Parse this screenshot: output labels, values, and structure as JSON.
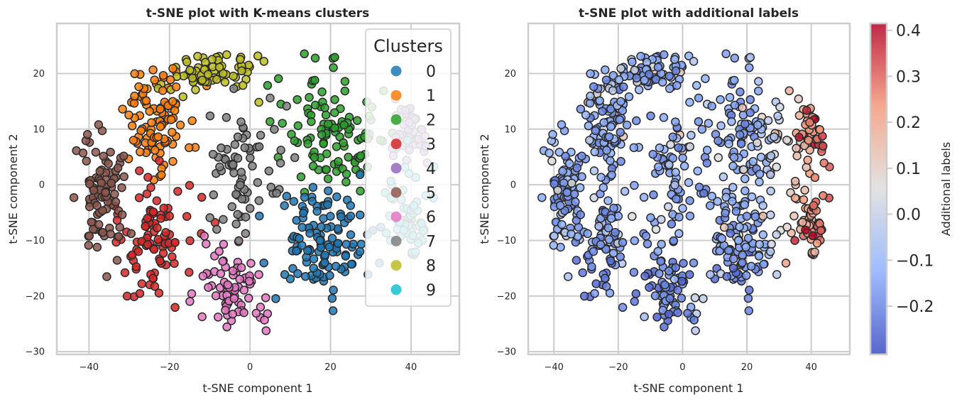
{
  "chart_data": [
    {
      "type": "scatter",
      "title": "t-SNE plot with K-means clusters",
      "xlabel": "t-SNE component 1",
      "ylabel": "t-SNE component 2",
      "xlim": [
        -48,
        52
      ],
      "ylim": [
        -30.5,
        29
      ],
      "xticks": [
        -40,
        -20,
        0,
        20,
        40
      ],
      "yticks": [
        -30,
        -20,
        -10,
        0,
        10,
        20
      ],
      "grid": true,
      "legend": {
        "title": "Clusters",
        "placement": "top-right"
      },
      "series": [
        {
          "name": "0",
          "color": "#1f77b4",
          "center": [
            18,
            -10
          ],
          "spread": [
            8,
            6.5
          ],
          "count": 120
        },
        {
          "name": "1",
          "color": "#ff7f0e",
          "center": [
            -24,
            12
          ],
          "spread": [
            6,
            6
          ],
          "count": 100
        },
        {
          "name": "2",
          "color": "#2ca02c",
          "center": [
            20,
            9
          ],
          "spread": [
            8,
            7
          ],
          "count": 110
        },
        {
          "name": "3",
          "color": "#d62728",
          "center": [
            -24,
            -10
          ],
          "spread": [
            7,
            8
          ],
          "count": 90
        },
        {
          "name": "4",
          "color": "#9467bd",
          "center": [
            42,
            13
          ],
          "spread": [
            4,
            5
          ],
          "count": 45
        },
        {
          "name": "5",
          "color": "#8c564b",
          "center": [
            -37,
            -2
          ],
          "spread": [
            4,
            8
          ],
          "count": 90
        },
        {
          "name": "6",
          "color": "#e377c2",
          "center": [
            -4,
            -19
          ],
          "spread": [
            7,
            5
          ],
          "count": 75
        },
        {
          "name": "7",
          "color": "#7f7f7f",
          "center": [
            -2,
            2
          ],
          "spread": [
            6,
            8
          ],
          "count": 70
        },
        {
          "name": "8",
          "color": "#bcbd22",
          "center": [
            -10,
            20
          ],
          "spread": [
            7,
            3
          ],
          "count": 70
        },
        {
          "name": "9",
          "color": "#17becf",
          "center": [
            40,
            -6
          ],
          "spread": [
            5,
            6
          ],
          "count": 60
        }
      ]
    },
    {
      "type": "scatter",
      "title": "t-SNE plot with additional labels",
      "xlabel": "t-SNE component 1",
      "ylabel": "t-SNE component 2",
      "xlim": [
        -48,
        52
      ],
      "ylim": [
        -30.5,
        29
      ],
      "xticks": [
        -40,
        -20,
        0,
        20,
        40
      ],
      "yticks": [
        -30,
        -20,
        -10,
        0,
        10,
        20
      ],
      "grid": true,
      "colormap": {
        "name": "coolwarm",
        "low": "#3b4cc0",
        "mid": "#dddddd",
        "high": "#b40426"
      },
      "colorbar": {
        "label": "Additional labels",
        "range": [
          -0.305,
          0.415
        ],
        "ticks": [
          -0.2,
          -0.1,
          0.0,
          0.1,
          0.2,
          0.3,
          0.4
        ],
        "tick_labels": [
          "−0.2",
          "−0.1",
          "0.0",
          "0.1",
          "0.2",
          "0.3",
          "0.4"
        ]
      }
    }
  ],
  "tick_labels": {
    "x": [
      "−40",
      "−20",
      "0",
      "20",
      "40"
    ],
    "y": [
      "−30",
      "−20",
      "−10",
      "0",
      "10",
      "20"
    ]
  }
}
